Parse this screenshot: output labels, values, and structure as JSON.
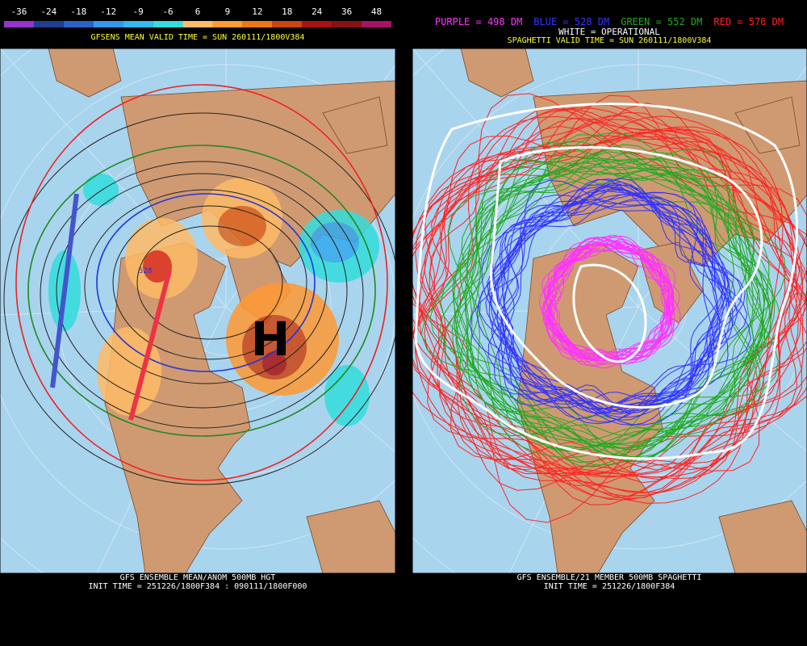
{
  "left_panel": {
    "colorbar": [
      {
        "label": "-36",
        "color": "#9933cc"
      },
      {
        "label": "-24",
        "color": "#1f3f8f"
      },
      {
        "label": "-18",
        "color": "#2a63c8"
      },
      {
        "label": "-12",
        "color": "#3399ee"
      },
      {
        "label": "-9",
        "color": "#33bbee"
      },
      {
        "label": "-6",
        "color": "#33dddd"
      },
      {
        "label": "6",
        "color": "#ffbb66"
      },
      {
        "label": "9",
        "color": "#ff9933"
      },
      {
        "label": "12",
        "color": "#ee7711"
      },
      {
        "label": "18",
        "color": "#cc4411"
      },
      {
        "label": "24",
        "color": "#aa1111"
      },
      {
        "label": "36",
        "color": "#881111"
      },
      {
        "label": "48",
        "color": "#aa1166"
      }
    ],
    "title": "GFSENS MEAN VALID TIME = SUN 260111/1800V384",
    "high_label": "H",
    "contour_label": "528",
    "footer": [
      "GFS ENSEMBLE MEAN/ANOM 500MB HGT",
      "INIT TIME = 251226/1800F384 : 090111/1800F000"
    ]
  },
  "right_panel": {
    "legend": [
      {
        "text": "PURPLE = 498 DM",
        "color": "#ff33ff"
      },
      {
        "text": "BLUE = 528 DM",
        "color": "#3333ff"
      },
      {
        "text": "GREEN = 552 DM",
        "color": "#22aa22"
      },
      {
        "text": "RED = 576 DM",
        "color": "#ff2222"
      }
    ],
    "operational": "WHITE = OPERATIONAL",
    "title": "SPAGHETTI VALID TIME = SUN 260111/1800V384",
    "footer": [
      "GFS ENSEMBLE/21 MEMBER 500MB SPAGHETTI",
      "INIT TIME = 251226/1800F384"
    ]
  }
}
